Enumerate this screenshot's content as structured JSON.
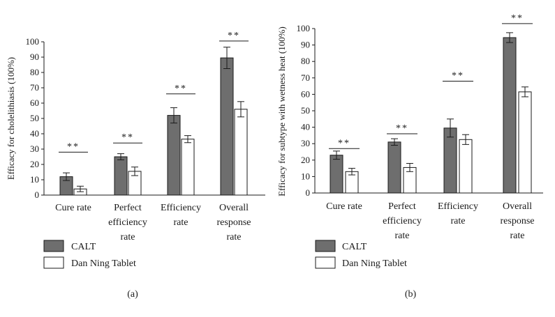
{
  "colors": {
    "calt": "#6e6e6e",
    "dan": "#ffffff",
    "stroke": "#1a1a1a"
  },
  "legend": {
    "calt": "CALT",
    "dan": "Dan Ning Tablet"
  },
  "chart_data": [
    {
      "type": "bar",
      "panel_label": "(a)",
      "ylabel": "Efficacy for cholelithiasis (100%)",
      "ylim": [
        0,
        100
      ],
      "yticks": [
        0,
        10,
        20,
        30,
        40,
        50,
        60,
        70,
        80,
        90,
        100
      ],
      "categories": [
        [
          "Cure rate"
        ],
        [
          "Perfect",
          "efficiency",
          "rate"
        ],
        [
          "Efficiency",
          "rate"
        ],
        [
          "Overall",
          "response",
          "rate"
        ]
      ],
      "series": [
        {
          "name": "CALT",
          "values": [
            12,
            25,
            52,
            89.5
          ],
          "errors": [
            2.5,
            2,
            5,
            7
          ]
        },
        {
          "name": "Dan Ning Tablet",
          "values": [
            4,
            15.5,
            36.5,
            56
          ],
          "errors": [
            1.8,
            2.8,
            2.3,
            5
          ]
        }
      ],
      "significance": [
        "**",
        "**",
        "**",
        "**"
      ],
      "sig_levels": [
        28,
        34,
        66,
        100.5
      ]
    },
    {
      "type": "bar",
      "panel_label": "(b)",
      "ylabel": "Efficacy for subtype with wetness heat (100%)",
      "ylim": [
        0,
        100
      ],
      "yticks": [
        0,
        10,
        20,
        30,
        40,
        50,
        60,
        70,
        80,
        90,
        100
      ],
      "categories": [
        [
          "Cure rate"
        ],
        [
          "Perfect",
          "efficiency",
          "rate"
        ],
        [
          "Efficiency",
          "rate"
        ],
        [
          "Overall",
          "response",
          "rate"
        ]
      ],
      "series": [
        {
          "name": "CALT",
          "values": [
            23,
            31,
            39.5,
            94.5
          ],
          "errors": [
            2.5,
            2,
            5.5,
            3
          ]
        },
        {
          "name": "Dan Ning Tablet",
          "values": [
            13,
            15.5,
            32.5,
            61.5
          ],
          "errors": [
            2,
            2.5,
            3,
            3
          ]
        }
      ],
      "significance": [
        "**",
        "**",
        "**",
        "**"
      ],
      "sig_levels": [
        27,
        36,
        68,
        103
      ]
    }
  ]
}
